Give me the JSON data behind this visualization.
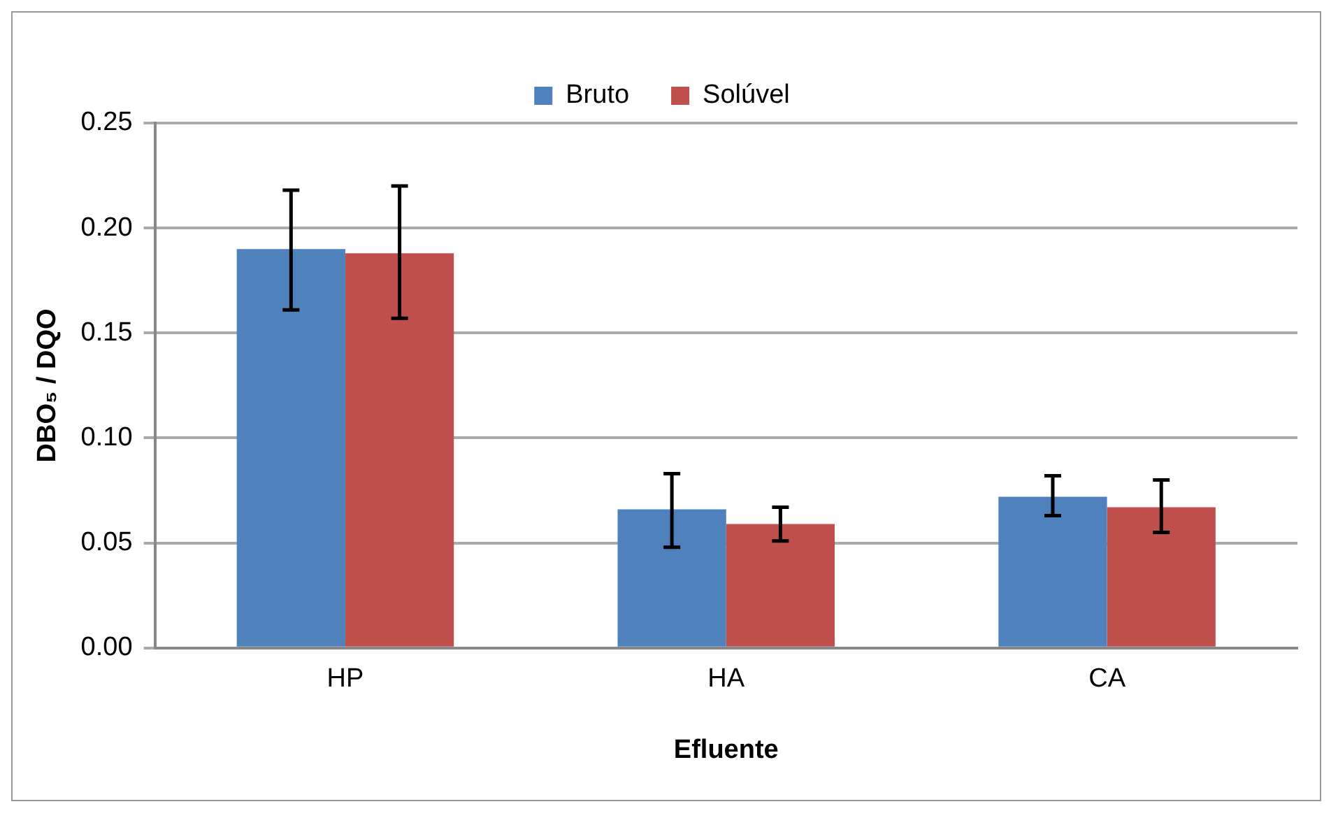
{
  "chart_data": {
    "type": "bar",
    "xlabel": "Efluente",
    "ylabel": "DBO₅ / DQO",
    "categories": [
      "HP",
      "HA",
      "CA"
    ],
    "series": [
      {
        "name": "Bruto",
        "color": "#4f81bd",
        "values": [
          0.19,
          0.066,
          0.072
        ],
        "errors": [
          [
            0.161,
            0.218
          ],
          [
            0.048,
            0.083
          ],
          [
            0.063,
            0.082
          ]
        ]
      },
      {
        "name": "Solúvel",
        "color": "#c0504d",
        "values": [
          0.188,
          0.059,
          0.067
        ],
        "errors": [
          [
            0.157,
            0.22
          ],
          [
            0.051,
            0.067
          ],
          [
            0.055,
            0.08
          ]
        ]
      }
    ],
    "ylim": [
      0,
      0.25
    ],
    "yticks": [
      {
        "value": 0,
        "label": "0.00"
      },
      {
        "value": 0.05,
        "label": "0.05"
      },
      {
        "value": 0.1,
        "label": "0.10"
      },
      {
        "value": 0.15,
        "label": "0.15"
      },
      {
        "value": 0.2,
        "label": "0.20"
      },
      {
        "value": 0.25,
        "label": "0.25"
      }
    ],
    "grid": "y",
    "legend": "top"
  }
}
